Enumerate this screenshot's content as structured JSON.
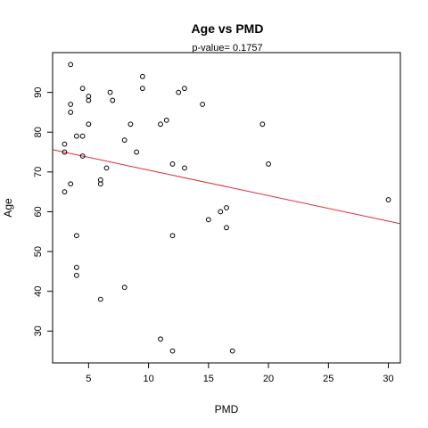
{
  "chart_data": {
    "type": "scatter",
    "title": "Age  vs  PMD",
    "subtitle": "p-value= 0.1757",
    "xlabel": "PMD",
    "ylabel": "Age",
    "xlim": [
      2,
      31
    ],
    "ylim": [
      22,
      100
    ],
    "x_ticks": [
      5,
      10,
      15,
      20,
      25,
      30
    ],
    "y_ticks": [
      30,
      40,
      50,
      60,
      70,
      80,
      90
    ],
    "grid": false,
    "points": [
      {
        "x": 3.0,
        "y": 77
      },
      {
        "x": 3.0,
        "y": 75
      },
      {
        "x": 3.0,
        "y": 65
      },
      {
        "x": 3.5,
        "y": 97
      },
      {
        "x": 3.5,
        "y": 87
      },
      {
        "x": 3.5,
        "y": 85
      },
      {
        "x": 3.5,
        "y": 67
      },
      {
        "x": 4.0,
        "y": 79
      },
      {
        "x": 4.0,
        "y": 54
      },
      {
        "x": 4.0,
        "y": 46
      },
      {
        "x": 4.0,
        "y": 44
      },
      {
        "x": 4.5,
        "y": 91
      },
      {
        "x": 4.5,
        "y": 79
      },
      {
        "x": 4.5,
        "y": 74
      },
      {
        "x": 5.0,
        "y": 89
      },
      {
        "x": 5.0,
        "y": 88
      },
      {
        "x": 5.0,
        "y": 82
      },
      {
        "x": 6.0,
        "y": 68
      },
      {
        "x": 6.0,
        "y": 67
      },
      {
        "x": 6.0,
        "y": 38
      },
      {
        "x": 6.5,
        "y": 71
      },
      {
        "x": 6.8,
        "y": 90
      },
      {
        "x": 7.0,
        "y": 88
      },
      {
        "x": 8.0,
        "y": 78
      },
      {
        "x": 8.0,
        "y": 41
      },
      {
        "x": 8.5,
        "y": 82
      },
      {
        "x": 9.0,
        "y": 75
      },
      {
        "x": 9.5,
        "y": 94
      },
      {
        "x": 9.5,
        "y": 91
      },
      {
        "x": 11.0,
        "y": 82
      },
      {
        "x": 11.0,
        "y": 28
      },
      {
        "x": 11.5,
        "y": 83
      },
      {
        "x": 12.0,
        "y": 72
      },
      {
        "x": 12.0,
        "y": 54
      },
      {
        "x": 12.0,
        "y": 25
      },
      {
        "x": 12.5,
        "y": 90
      },
      {
        "x": 13.0,
        "y": 91
      },
      {
        "x": 13.0,
        "y": 71
      },
      {
        "x": 14.5,
        "y": 87
      },
      {
        "x": 15.0,
        "y": 58
      },
      {
        "x": 16.0,
        "y": 60
      },
      {
        "x": 16.5,
        "y": 61
      },
      {
        "x": 16.5,
        "y": 56
      },
      {
        "x": 17.0,
        "y": 25
      },
      {
        "x": 19.5,
        "y": 82
      },
      {
        "x": 20.0,
        "y": 72
      },
      {
        "x": 30.0,
        "y": 63
      }
    ],
    "regression_line": {
      "x": [
        2,
        31
      ],
      "y": [
        75.6,
        57.0
      ],
      "color": "#dc2f38"
    },
    "colors": {
      "points": "#000000",
      "line": "#dc2f38",
      "axis": "#000000"
    }
  }
}
